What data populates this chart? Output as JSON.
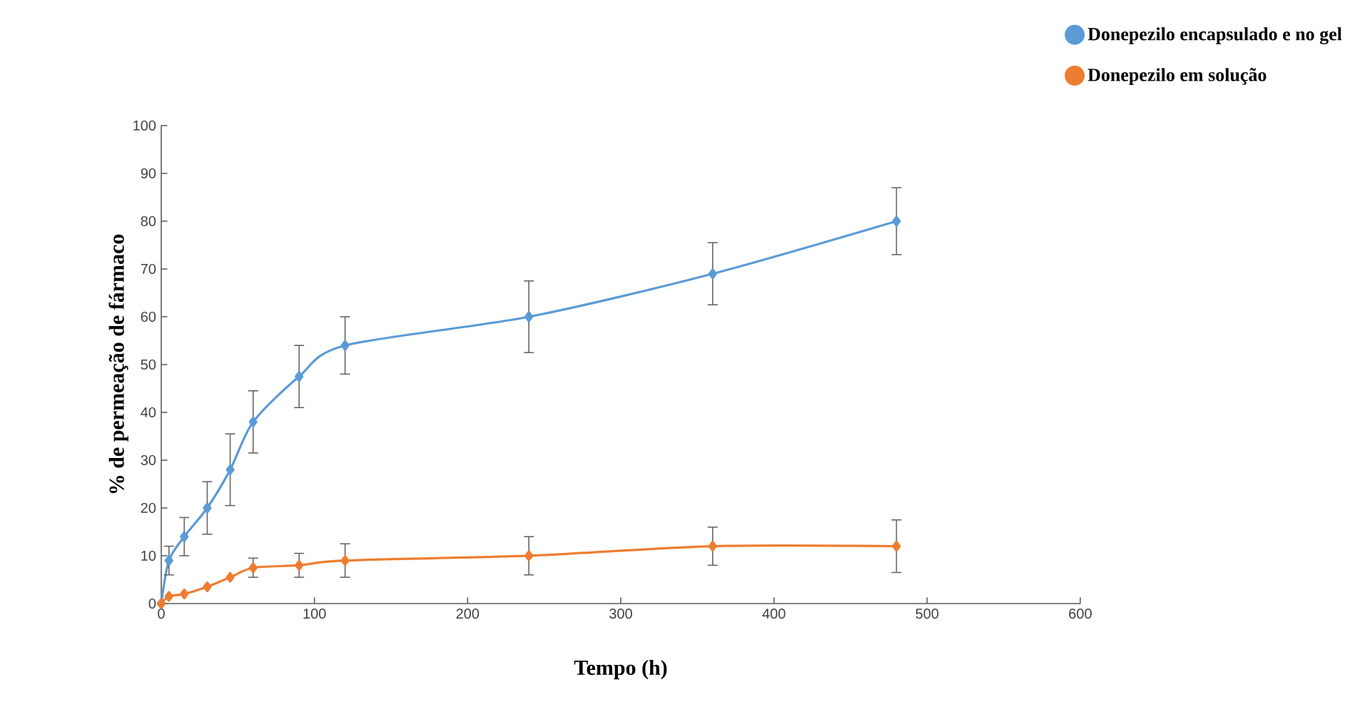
{
  "chart_data": {
    "type": "line",
    "xlabel": "Tempo (h)",
    "ylabel": "% de permeação de fármaco",
    "xlim": [
      0,
      600
    ],
    "xticks": [
      0,
      100,
      200,
      300,
      400,
      500,
      600
    ],
    "ylim": [
      0,
      100
    ],
    "yticks": [
      0,
      10,
      20,
      30,
      40,
      50,
      60,
      70,
      80,
      90,
      100
    ],
    "x": [
      0,
      5,
      15,
      30,
      45,
      60,
      90,
      120,
      240,
      360,
      480
    ],
    "series": [
      {
        "name": "Donepezilo encapsulado e no gel",
        "color": "#5b9bd5",
        "values": [
          0,
          9,
          14,
          20,
          28,
          38,
          47.5,
          54,
          60,
          69,
          80
        ],
        "errors": [
          null,
          3,
          4,
          5.5,
          7.5,
          6.5,
          6.5,
          6,
          7.5,
          6.5,
          7
        ]
      },
      {
        "name": "Donepezilo em solução",
        "color": "#ed7d31",
        "values": [
          0,
          1.5,
          2,
          3.5,
          5.5,
          7.5,
          8,
          9,
          10,
          12,
          12
        ],
        "errors": [
          null,
          null,
          null,
          null,
          null,
          2,
          2.5,
          3.5,
          4,
          4,
          5.5
        ]
      }
    ],
    "marker": "diamond",
    "line_style": "solid",
    "grid": false,
    "legend": "top right"
  }
}
